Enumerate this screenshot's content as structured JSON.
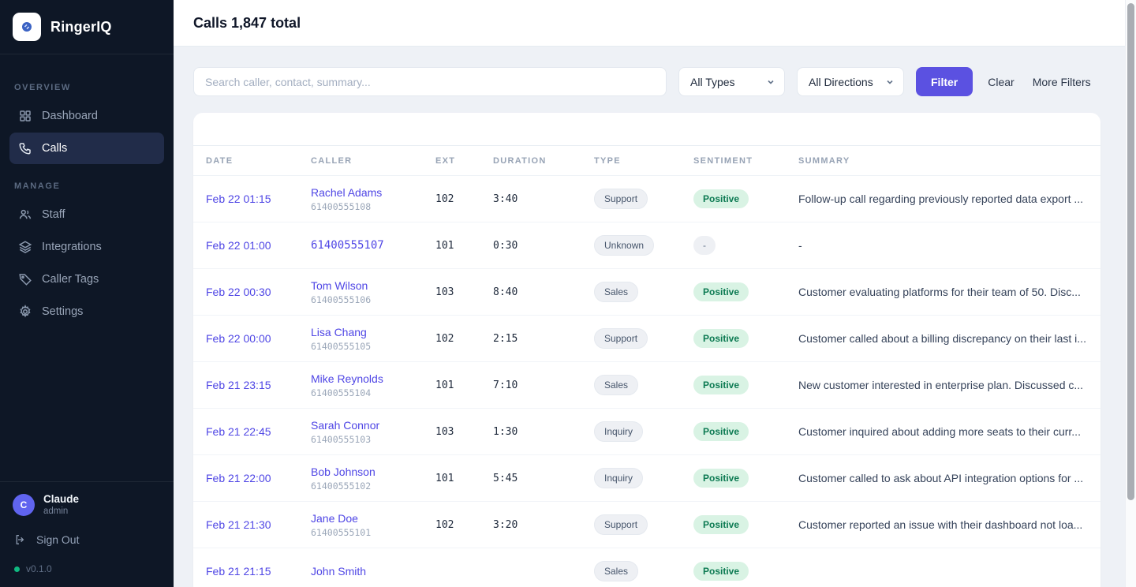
{
  "app": {
    "name": "RingerIQ",
    "version": "v0.1.0"
  },
  "accents": {
    "brand_link": "#4f46e5",
    "filter_button": "#5b51e1",
    "positive_badge_bg": "#d9f3e4",
    "positive_badge_text": "#0c7a52",
    "sidebar_bg": "#0e1726",
    "version_dot": "#10b981"
  },
  "sidebar": {
    "sections": [
      {
        "label": "OVERVIEW",
        "items": [
          {
            "label": "Dashboard",
            "icon": "grid-icon",
            "active": false
          },
          {
            "label": "Calls",
            "icon": "phone-icon",
            "active": true
          }
        ]
      },
      {
        "label": "MANAGE",
        "items": [
          {
            "label": "Staff",
            "icon": "users-icon",
            "active": false
          },
          {
            "label": "Integrations",
            "icon": "layers-icon",
            "active": false
          },
          {
            "label": "Caller Tags",
            "icon": "tag-icon",
            "active": false
          },
          {
            "label": "Settings",
            "icon": "gear-icon",
            "active": false
          }
        ]
      }
    ],
    "user": {
      "initial": "C",
      "name": "Claude",
      "role": "admin"
    },
    "sign_out_label": "Sign Out"
  },
  "header": {
    "title": "Calls 1,847 total"
  },
  "filters": {
    "search_placeholder": "Search caller, contact, summary...",
    "type_selected": "All Types",
    "direction_selected": "All Directions",
    "filter_button": "Filter",
    "clear_button": "Clear",
    "more_filters_button": "More Filters"
  },
  "table": {
    "columns": [
      "Date",
      "Caller",
      "Ext",
      "Duration",
      "Type",
      "Sentiment",
      "Summary"
    ],
    "rows": [
      {
        "date": "Feb 22 01:15",
        "caller_name": "Rachel Adams",
        "caller_phone": "61400555108",
        "ext": "102",
        "duration": "3:40",
        "type": "Support",
        "sentiment": "Positive",
        "summary": "Follow-up call regarding previously reported data export ..."
      },
      {
        "date": "Feb 22 01:00",
        "caller_name": "61400555107",
        "caller_phone": "",
        "ext": "101",
        "duration": "0:30",
        "type": "Unknown",
        "sentiment": "-",
        "summary": "-"
      },
      {
        "date": "Feb 22 00:30",
        "caller_name": "Tom Wilson",
        "caller_phone": "61400555106",
        "ext": "103",
        "duration": "8:40",
        "type": "Sales",
        "sentiment": "Positive",
        "summary": "Customer evaluating platforms for their team of 50. Disc..."
      },
      {
        "date": "Feb 22 00:00",
        "caller_name": "Lisa Chang",
        "caller_phone": "61400555105",
        "ext": "102",
        "duration": "2:15",
        "type": "Support",
        "sentiment": "Positive",
        "summary": "Customer called about a billing discrepancy on their last i..."
      },
      {
        "date": "Feb 21 23:15",
        "caller_name": "Mike Reynolds",
        "caller_phone": "61400555104",
        "ext": "101",
        "duration": "7:10",
        "type": "Sales",
        "sentiment": "Positive",
        "summary": "New customer interested in enterprise plan. Discussed c..."
      },
      {
        "date": "Feb 21 22:45",
        "caller_name": "Sarah Connor",
        "caller_phone": "61400555103",
        "ext": "103",
        "duration": "1:30",
        "type": "Inquiry",
        "sentiment": "Positive",
        "summary": "Customer inquired about adding more seats to their curr..."
      },
      {
        "date": "Feb 21 22:00",
        "caller_name": "Bob Johnson",
        "caller_phone": "61400555102",
        "ext": "101",
        "duration": "5:45",
        "type": "Inquiry",
        "sentiment": "Positive",
        "summary": "Customer called to ask about API integration options for ..."
      },
      {
        "date": "Feb 21 21:30",
        "caller_name": "Jane Doe",
        "caller_phone": "61400555101",
        "ext": "102",
        "duration": "3:20",
        "type": "Support",
        "sentiment": "Positive",
        "summary": "Customer reported an issue with their dashboard not loa..."
      },
      {
        "date": "Feb 21 21:15",
        "caller_name": "John Smith",
        "caller_phone": "",
        "ext": "",
        "duration": "",
        "type": "Sales",
        "sentiment": "Positive",
        "summary": ""
      }
    ]
  }
}
